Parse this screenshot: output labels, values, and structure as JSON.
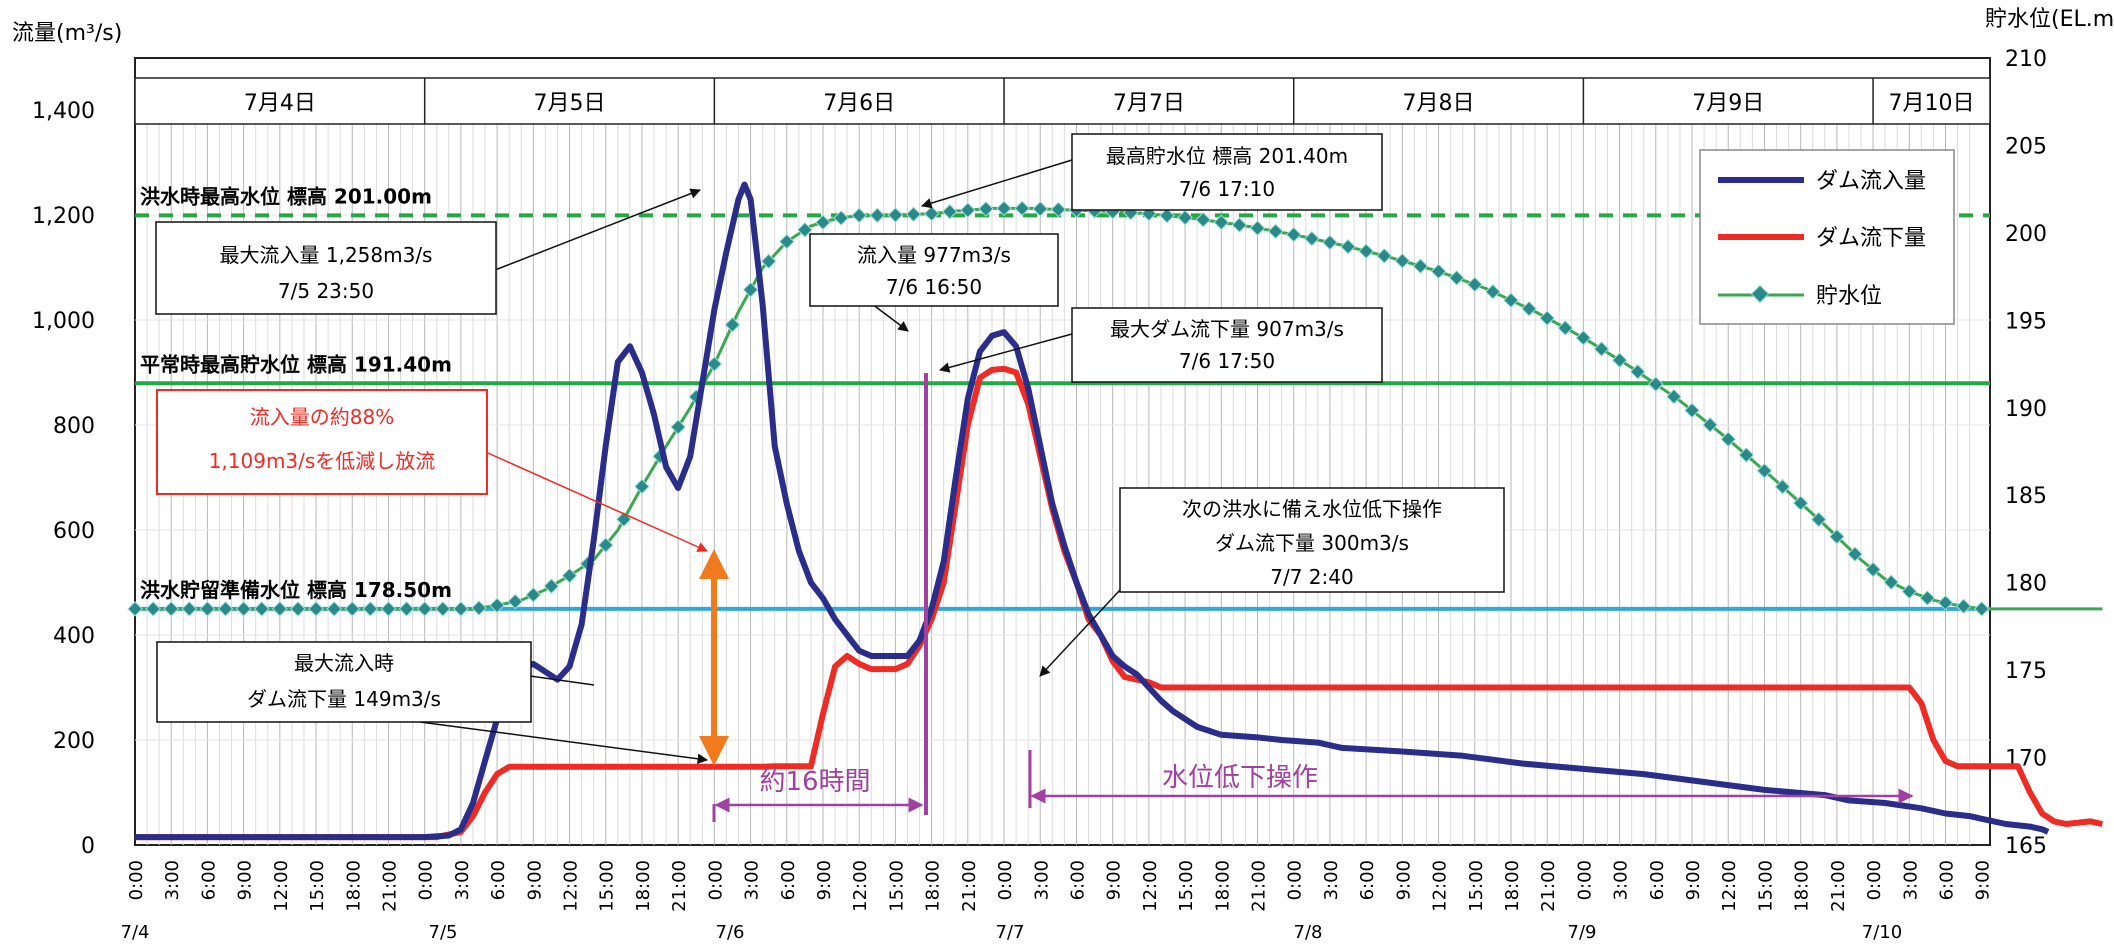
{
  "chart_data": {
    "type": "line",
    "y_left_label": "流量(m³/s)",
    "y_right_label": "貯水位(EL.m)",
    "ylim_left": [
      0,
      1400
    ],
    "yticks_left": [
      0,
      200,
      400,
      600,
      800,
      1000,
      1200,
      1400
    ],
    "ytick_labels_left": [
      "0",
      "200",
      "400",
      "600",
      "800",
      "1,000",
      "1,200",
      "1,400"
    ],
    "ylim_right": [
      165,
      210
    ],
    "yticks_right": [
      165,
      170,
      175,
      180,
      185,
      190,
      195,
      200,
      205,
      210
    ],
    "day_labels": [
      "7月4日",
      "7月5日",
      "7月6日",
      "7月7日",
      "7月8日",
      "7月9日",
      "7月10日"
    ],
    "date_labels": [
      "7/4",
      "7/5",
      "7/6",
      "7/7",
      "7/8",
      "7/9",
      "7/10"
    ],
    "hour_labels": [
      "0:00",
      "3:00",
      "6:00",
      "9:00",
      "12:00",
      "15:00",
      "18:00",
      "21:00"
    ],
    "final_hour_labels": [
      "0:00",
      "3:00",
      "6:00",
      "9:00"
    ],
    "xlim_hours": [
      0,
      153
    ],
    "legend_position": "top-right",
    "colors": {
      "inflow": "#2b2d8a",
      "outflow": "#ee2b24",
      "level": "#3aa852",
      "level_marker": "#2a8a8a",
      "flood_max_line": "#22a845",
      "normal_max_line": "#22a845",
      "standby_line": "#2fa8e0",
      "arrow_orange": "#f07a1e",
      "arrow_purple": "#a040a0"
    },
    "series": [
      {
        "name": "ダム流入量",
        "axis": "left",
        "points": [
          [
            0,
            15
          ],
          [
            24,
            15
          ],
          [
            26,
            18
          ],
          [
            27,
            30
          ],
          [
            28,
            80
          ],
          [
            29,
            160
          ],
          [
            30,
            240
          ],
          [
            31,
            290
          ],
          [
            32,
            335
          ],
          [
            33,
            345
          ],
          [
            34,
            330
          ],
          [
            35,
            315
          ],
          [
            36,
            340
          ],
          [
            37,
            420
          ],
          [
            38,
            580
          ],
          [
            39,
            760
          ],
          [
            40,
            920
          ],
          [
            41,
            950
          ],
          [
            42,
            900
          ],
          [
            43,
            820
          ],
          [
            44,
            720
          ],
          [
            45,
            680
          ],
          [
            46,
            740
          ],
          [
            47,
            880
          ],
          [
            48,
            1020
          ],
          [
            49,
            1130
          ],
          [
            50,
            1230
          ],
          [
            50.5,
            1258
          ],
          [
            51,
            1230
          ],
          [
            52,
            1030
          ],
          [
            53,
            760
          ],
          [
            54,
            650
          ],
          [
            55,
            560
          ],
          [
            56,
            500
          ],
          [
            57,
            470
          ],
          [
            58,
            430
          ],
          [
            59,
            400
          ],
          [
            60,
            370
          ],
          [
            61,
            360
          ],
          [
            62,
            360
          ],
          [
            63,
            360
          ],
          [
            64,
            360
          ],
          [
            65,
            390
          ],
          [
            66,
            450
          ],
          [
            67,
            540
          ],
          [
            68,
            700
          ],
          [
            69,
            850
          ],
          [
            70,
            940
          ],
          [
            71,
            970
          ],
          [
            72,
            977
          ],
          [
            73,
            950
          ],
          [
            74,
            870
          ],
          [
            75,
            760
          ],
          [
            76,
            650
          ],
          [
            77,
            570
          ],
          [
            78,
            500
          ],
          [
            79,
            440
          ],
          [
            80,
            400
          ],
          [
            81,
            360
          ],
          [
            82,
            340
          ],
          [
            83,
            325
          ],
          [
            84,
            300
          ],
          [
            85,
            275
          ],
          [
            86,
            255
          ],
          [
            88,
            225
          ],
          [
            90,
            210
          ],
          [
            93,
            205
          ],
          [
            95,
            200
          ],
          [
            98,
            195
          ],
          [
            100,
            185
          ],
          [
            105,
            178
          ],
          [
            110,
            170
          ],
          [
            115,
            155
          ],
          [
            120,
            145
          ],
          [
            125,
            135
          ],
          [
            130,
            120
          ],
          [
            135,
            105
          ],
          [
            140,
            95
          ],
          [
            142,
            85
          ],
          [
            145,
            80
          ],
          [
            148,
            70
          ],
          [
            150,
            60
          ],
          [
            152,
            55
          ],
          [
            153,
            50
          ],
          [
            155,
            40
          ],
          [
            157,
            35
          ],
          [
            158,
            30
          ],
          [
            158.5,
            25
          ]
        ]
      },
      {
        "name": "ダム流下量",
        "axis": "left",
        "points": [
          [
            0,
            15
          ],
          [
            25,
            15
          ],
          [
            27,
            25
          ],
          [
            28,
            55
          ],
          [
            29,
            100
          ],
          [
            30,
            135
          ],
          [
            31,
            149
          ],
          [
            50,
            149
          ],
          [
            52,
            149
          ],
          [
            53,
            150
          ],
          [
            55,
            150
          ],
          [
            56,
            150
          ],
          [
            57,
            250
          ],
          [
            58,
            340
          ],
          [
            59,
            360
          ],
          [
            60,
            345
          ],
          [
            61,
            335
          ],
          [
            62,
            335
          ],
          [
            63,
            335
          ],
          [
            64,
            345
          ],
          [
            65,
            380
          ],
          [
            66,
            430
          ],
          [
            67,
            500
          ],
          [
            68,
            650
          ],
          [
            69,
            800
          ],
          [
            70,
            890
          ],
          [
            71,
            905
          ],
          [
            72,
            907
          ],
          [
            73,
            900
          ],
          [
            74,
            840
          ],
          [
            75,
            740
          ],
          [
            76,
            640
          ],
          [
            77,
            560
          ],
          [
            78,
            500
          ],
          [
            79,
            430
          ],
          [
            80,
            400
          ],
          [
            81,
            350
          ],
          [
            82,
            320
          ],
          [
            83,
            315
          ],
          [
            84,
            310
          ],
          [
            85,
            300
          ],
          [
            90,
            300
          ],
          [
            100,
            300
          ],
          [
            115,
            300
          ],
          [
            130,
            300
          ],
          [
            140,
            300
          ],
          [
            147,
            300
          ],
          [
            148,
            270
          ],
          [
            149,
            200
          ],
          [
            150,
            160
          ],
          [
            151,
            150
          ],
          [
            152,
            150
          ],
          [
            153,
            150
          ],
          [
            156,
            150
          ],
          [
            157,
            100
          ],
          [
            158,
            60
          ],
          [
            159,
            45
          ],
          [
            160,
            40
          ],
          [
            162,
            45
          ],
          [
            163,
            40
          ]
        ]
      },
      {
        "name": "貯水位",
        "axis": "right",
        "points": [
          [
            0,
            178.5
          ],
          [
            28,
            178.5
          ],
          [
            30,
            178.7
          ],
          [
            32,
            179.0
          ],
          [
            34,
            179.6
          ],
          [
            36,
            180.4
          ],
          [
            38,
            181.3
          ],
          [
            40,
            183.0
          ],
          [
            42,
            185.5
          ],
          [
            44,
            187.8
          ],
          [
            46,
            190.0
          ],
          [
            48,
            192.5
          ],
          [
            50,
            195.5
          ],
          [
            52,
            198.0
          ],
          [
            54,
            199.5
          ],
          [
            56,
            200.4
          ],
          [
            58,
            200.8
          ],
          [
            60,
            201.0
          ],
          [
            62,
            201.0
          ],
          [
            64,
            201.05
          ],
          [
            66,
            201.1
          ],
          [
            68,
            201.25
          ],
          [
            70,
            201.35
          ],
          [
            71,
            201.4
          ],
          [
            72,
            201.4
          ],
          [
            74,
            201.4
          ],
          [
            76,
            201.35
          ],
          [
            78,
            201.3
          ],
          [
            80,
            201.25
          ],
          [
            84,
            201.1
          ],
          [
            88,
            200.8
          ],
          [
            92,
            200.4
          ],
          [
            96,
            199.9
          ],
          [
            100,
            199.3
          ],
          [
            104,
            198.6
          ],
          [
            108,
            197.8
          ],
          [
            112,
            196.8
          ],
          [
            116,
            195.5
          ],
          [
            120,
            194.0
          ],
          [
            124,
            192.3
          ],
          [
            128,
            190.4
          ],
          [
            132,
            188.2
          ],
          [
            136,
            185.8
          ],
          [
            140,
            183.3
          ],
          [
            143,
            181.3
          ],
          [
            145,
            180.2
          ],
          [
            147,
            179.5
          ],
          [
            149,
            179.0
          ],
          [
            151,
            178.7
          ],
          [
            153,
            178.5
          ],
          [
            156,
            178.5
          ],
          [
            163,
            178.5
          ]
        ]
      }
    ],
    "reference_lines": [
      {
        "label": "洪水時最高水位 標高 201.00m",
        "level": 201.0
      },
      {
        "label": "平常時最高貯水位 標高 191.40m",
        "level": 191.4
      },
      {
        "label": "洪水貯留準備水位 標高 178.50m",
        "level": 178.5
      }
    ],
    "annotations": [
      {
        "line1": "最大流入量 1,258m3/s",
        "line2": "7/5 23:50"
      },
      {
        "line1": "最高貯水位 標高 201.40m",
        "line2": "7/6 17:10"
      },
      {
        "line1": "流入量 977m3/s",
        "line2": "7/6 16:50"
      },
      {
        "line1": "最大ダム流下量 907m3/s",
        "line2": "7/6 17:50"
      },
      {
        "line1": "流入量の約88%",
        "line2": "1,109m3/sを低減し放流"
      },
      {
        "line1": "次の洪水に備え水位低下操作",
        "line2": "ダム流下量 300m3/s",
        "line3": "7/7 2:40"
      },
      {
        "line1": "最大流入時",
        "line2": "ダム流下量 149m3/s"
      }
    ],
    "spans": [
      {
        "label": "約16時間",
        "from_hour": 47.8,
        "to_hour": 65.8
      },
      {
        "label": "水位低下操作",
        "from_hour": 74.7,
        "to_hour": 155.5
      }
    ]
  }
}
